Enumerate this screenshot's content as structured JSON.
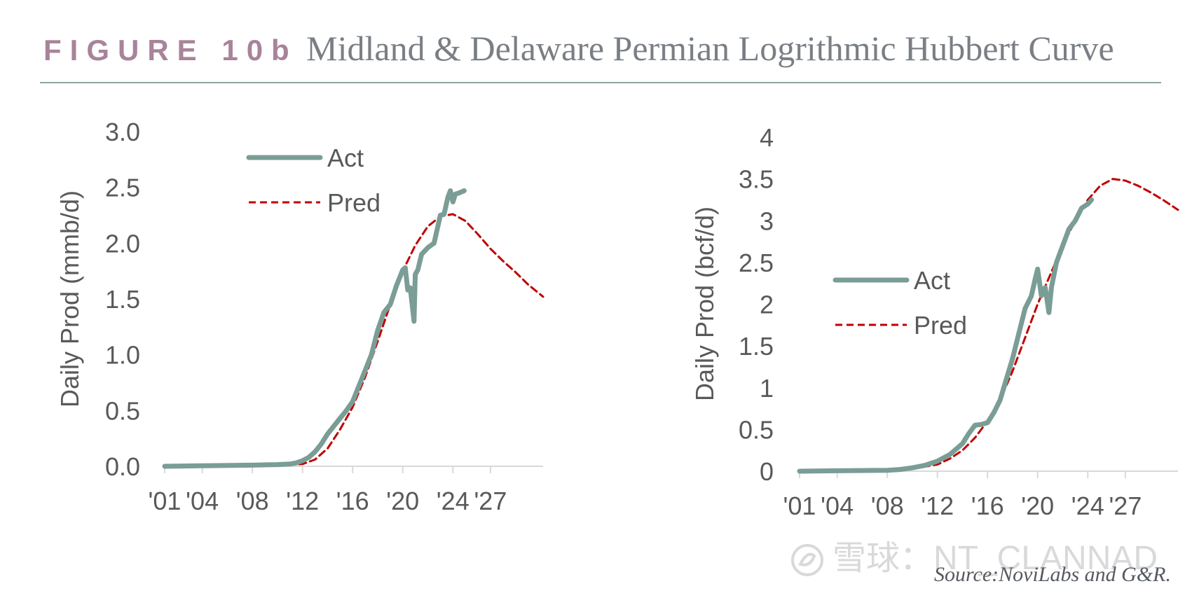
{
  "header": {
    "figure_label": "FIGURE 10b",
    "title": "Midland & Delaware Permian  Logrithmic Hubbert Curve",
    "label_color": "#a8839a",
    "title_color": "#7a7f85"
  },
  "footer": {
    "source": "Source:NoviLabs and G&R.",
    "watermark": "雪球：NT_CLANNAD"
  },
  "colors": {
    "actual": "#7a9d96",
    "predicted": "#c00000",
    "axis": "#d9d9d9",
    "text": "#595959"
  },
  "chart_data": [
    {
      "type": "line",
      "title": "",
      "xlabel": "",
      "ylabel": "Daily Prod (mmb/d)",
      "xlim": [
        2001,
        2031.2
      ],
      "ylim": [
        0,
        3.0
      ],
      "xticks": [
        2001,
        2004,
        2008,
        2012,
        2016,
        2020,
        2024,
        2027
      ],
      "xtick_labels": [
        "'01",
        "'04",
        "'08",
        "'12",
        "'16",
        "'20",
        "'24",
        "'27"
      ],
      "yticks": [
        0,
        0.5,
        1.0,
        1.5,
        2.0,
        2.5,
        3.0
      ],
      "ytick_labels": [
        "0.0",
        "0.5",
        "1.0",
        "1.5",
        "2.0",
        "2.5",
        "3.0"
      ],
      "grid": false,
      "legend_position": "top-left",
      "series": [
        {
          "name": "Act",
          "x": [
            2001,
            2004,
            2008,
            2010,
            2011,
            2011.5,
            2012,
            2012.5,
            2013,
            2013.5,
            2014,
            2014.5,
            2015,
            2015.5,
            2016,
            2016.5,
            2017,
            2017.5,
            2018,
            2018.5,
            2019,
            2019.5,
            2020,
            2020.2,
            2020.4,
            2020.6,
            2020.9,
            2021.0,
            2021.2,
            2021.5,
            2022,
            2022.5,
            2023,
            2023.3,
            2023.6,
            2023.8,
            2024.0,
            2024.2,
            2024.5,
            2024.9
          ],
          "y": [
            0.0,
            0.005,
            0.01,
            0.015,
            0.02,
            0.03,
            0.05,
            0.08,
            0.13,
            0.2,
            0.29,
            0.36,
            0.43,
            0.5,
            0.58,
            0.72,
            0.86,
            1.0,
            1.22,
            1.38,
            1.45,
            1.62,
            1.76,
            1.78,
            1.58,
            1.6,
            1.3,
            1.72,
            1.76,
            1.9,
            1.96,
            2.0,
            2.25,
            2.26,
            2.41,
            2.47,
            2.37,
            2.44,
            2.45,
            2.47
          ]
        },
        {
          "name": "Pred",
          "x": [
            2001,
            2004,
            2008,
            2010,
            2011,
            2012,
            2013,
            2014,
            2015,
            2016,
            2017,
            2018,
            2019,
            2020,
            2021,
            2022,
            2023,
            2024,
            2025,
            2026,
            2027,
            2028,
            2029,
            2030,
            2031.2
          ],
          "y": [
            0.0,
            0.0,
            0.005,
            0.01,
            0.015,
            0.02,
            0.06,
            0.16,
            0.33,
            0.53,
            0.8,
            1.12,
            1.45,
            1.75,
            1.98,
            2.15,
            2.24,
            2.26,
            2.2,
            2.08,
            1.95,
            1.84,
            1.74,
            1.63,
            1.52
          ]
        }
      ]
    },
    {
      "type": "line",
      "title": "",
      "xlabel": "",
      "ylabel": "Daily Prod (bcf/d)",
      "xlim": [
        2001,
        2031.2
      ],
      "ylim": [
        0,
        4
      ],
      "xticks": [
        2001,
        2004,
        2008,
        2012,
        2016,
        2020,
        2024,
        2027
      ],
      "xtick_labels": [
        "'01",
        "'04",
        "'08",
        "'12",
        "'16",
        "'20",
        "'24",
        "'27"
      ],
      "yticks": [
        0,
        0.5,
        1,
        1.5,
        2,
        2.5,
        3,
        3.5,
        4
      ],
      "ytick_labels": [
        "0",
        "0.5",
        "1",
        "1.5",
        "2",
        "2.5",
        "3",
        "3.5",
        "4"
      ],
      "grid": false,
      "legend_position": "center-left",
      "series": [
        {
          "name": "Act",
          "x": [
            2001,
            2004,
            2008,
            2009,
            2010,
            2011,
            2012,
            2013,
            2014,
            2014.5,
            2015,
            2015.5,
            2016,
            2016.5,
            2017,
            2017.5,
            2018,
            2018.5,
            2019,
            2019.5,
            2019.8,
            2020.0,
            2020.3,
            2020.6,
            2020.9,
            2021.1,
            2021.5,
            2022,
            2022.5,
            2023,
            2023.5,
            2024,
            2024.3
          ],
          "y": [
            0.0,
            0.005,
            0.01,
            0.02,
            0.04,
            0.07,
            0.12,
            0.2,
            0.33,
            0.45,
            0.55,
            0.56,
            0.58,
            0.7,
            0.85,
            1.1,
            1.35,
            1.65,
            1.95,
            2.1,
            2.3,
            2.42,
            2.1,
            2.2,
            1.9,
            2.2,
            2.5,
            2.7,
            2.9,
            3.0,
            3.15,
            3.2,
            3.25
          ]
        },
        {
          "name": "Pred",
          "x": [
            2001,
            2004,
            2008,
            2010,
            2012,
            2013,
            2014,
            2015,
            2016,
            2017,
            2018,
            2019,
            2020,
            2021,
            2022,
            2023,
            2024,
            2025,
            2026,
            2027,
            2028,
            2029,
            2030,
            2031.2
          ],
          "y": [
            0.0,
            0.0,
            0.01,
            0.03,
            0.08,
            0.15,
            0.25,
            0.4,
            0.6,
            0.85,
            1.2,
            1.6,
            2.0,
            2.35,
            2.7,
            3.0,
            3.25,
            3.42,
            3.5,
            3.48,
            3.42,
            3.34,
            3.25,
            3.13
          ]
        }
      ]
    }
  ]
}
